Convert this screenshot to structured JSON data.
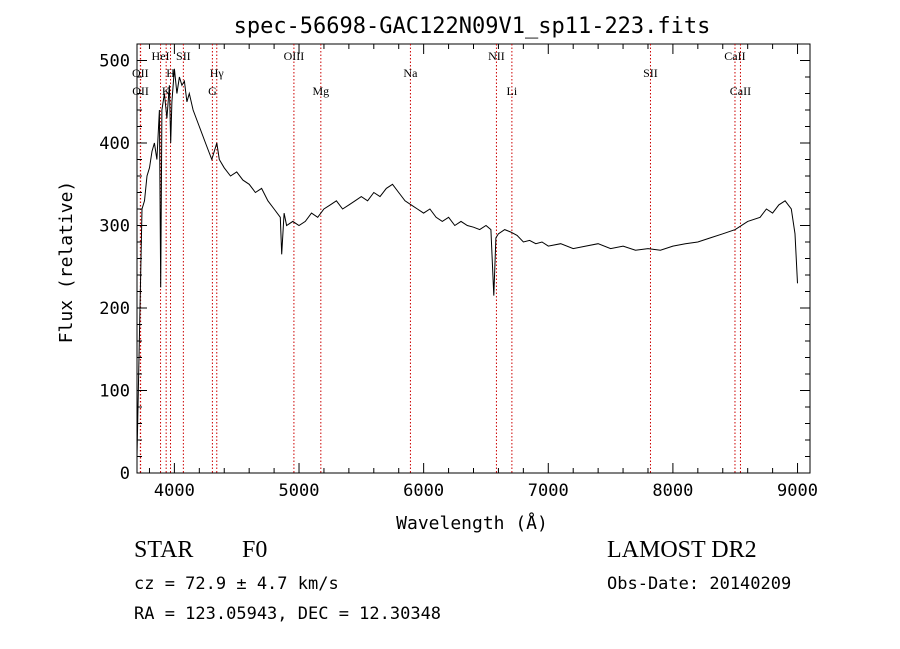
{
  "chart_data": {
    "type": "line",
    "title": "spec-56698-GAC122N09V1_sp11-223.fits",
    "xlabel": "Wavelength (Å)",
    "ylabel": "Flux (relative)",
    "xlim": [
      3700,
      9100
    ],
    "ylim": [
      0,
      520
    ],
    "xticks": [
      4000,
      5000,
      6000,
      7000,
      8000,
      9000
    ],
    "yticks": [
      0,
      100,
      200,
      300,
      400,
      500
    ],
    "grid": false,
    "line_color": "#000000",
    "marker_color": "#cc0000",
    "series": [
      {
        "x": [
          3700,
          3720,
          3740,
          3760,
          3780,
          3800,
          3820,
          3840,
          3860,
          3880,
          3890,
          3900,
          3920,
          3940,
          3960,
          3970,
          3980,
          4000,
          4020,
          4040,
          4060,
          4080,
          4100,
          4120,
          4150,
          4200,
          4250,
          4300,
          4340,
          4360,
          4400,
          4450,
          4500,
          4550,
          4600,
          4650,
          4700,
          4750,
          4800,
          4850,
          4861,
          4880,
          4900,
          4950,
          5000,
          5050,
          5100,
          5150,
          5200,
          5250,
          5300,
          5350,
          5400,
          5450,
          5500,
          5550,
          5600,
          5650,
          5700,
          5750,
          5800,
          5850,
          5900,
          5950,
          6000,
          6050,
          6100,
          6150,
          6200,
          6250,
          6300,
          6350,
          6400,
          6450,
          6500,
          6540,
          6563,
          6580,
          6600,
          6650,
          6700,
          6750,
          6800,
          6850,
          6900,
          6950,
          7000,
          7100,
          7200,
          7300,
          7400,
          7500,
          7600,
          7700,
          7800,
          7900,
          8000,
          8100,
          8200,
          8300,
          8400,
          8500,
          8600,
          8700,
          8750,
          8800,
          8850,
          8900,
          8950,
          8980,
          9000
        ],
        "y": [
          20,
          170,
          320,
          330,
          360,
          370,
          390,
          400,
          380,
          440,
          225,
          440,
          460,
          430,
          470,
          400,
          450,
          490,
          460,
          480,
          470,
          475,
          450,
          460,
          440,
          420,
          400,
          380,
          400,
          380,
          370,
          360,
          365,
          355,
          350,
          340,
          345,
          330,
          320,
          310,
          265,
          315,
          300,
          305,
          300,
          305,
          315,
          310,
          320,
          325,
          330,
          320,
          325,
          330,
          335,
          330,
          340,
          335,
          345,
          350,
          340,
          330,
          325,
          320,
          315,
          320,
          310,
          305,
          310,
          300,
          305,
          300,
          298,
          295,
          300,
          295,
          215,
          285,
          290,
          295,
          292,
          288,
          280,
          282,
          278,
          280,
          275,
          278,
          272,
          275,
          278,
          272,
          275,
          270,
          272,
          270,
          275,
          278,
          280,
          285,
          290,
          295,
          305,
          310,
          320,
          315,
          325,
          330,
          320,
          290,
          230
        ]
      }
    ],
    "line_markers": [
      {
        "label": "OII",
        "x": 3727,
        "row": 1
      },
      {
        "label": "OII",
        "x": 3729,
        "row": 2
      },
      {
        "label": "HeI",
        "x": 3889,
        "row": 0
      },
      {
        "label": "K",
        "x": 3934,
        "row": 2
      },
      {
        "label": "H",
        "x": 3969,
        "row": 1
      },
      {
        "label": "SII",
        "x": 4072,
        "row": 0
      },
      {
        "label": "Hγ",
        "x": 4340,
        "row": 1
      },
      {
        "label": "G",
        "x": 4305,
        "row": 2
      },
      {
        "label": "OIII",
        "x": 4959,
        "row": 0
      },
      {
        "label": "Mg",
        "x": 5175,
        "row": 2
      },
      {
        "label": "Na",
        "x": 5894,
        "row": 1
      },
      {
        "label": "NII",
        "x": 6584,
        "row": 0
      },
      {
        "label": "Li",
        "x": 6708,
        "row": 2
      },
      {
        "label": "SII",
        "x": 7820,
        "row": 1
      },
      {
        "label": "CaII",
        "x": 8498,
        "row": 0
      },
      {
        "label": "CaII",
        "x": 8542,
        "row": 2
      }
    ]
  },
  "info": {
    "object_type": "STAR",
    "object_class": "F0",
    "survey": "LAMOST DR2",
    "cz": "cz = 72.9 ± 4.7 km/s",
    "obs_date": "Obs-Date: 20140209",
    "radec": "RA = 123.05943, DEC =  12.30348"
  }
}
